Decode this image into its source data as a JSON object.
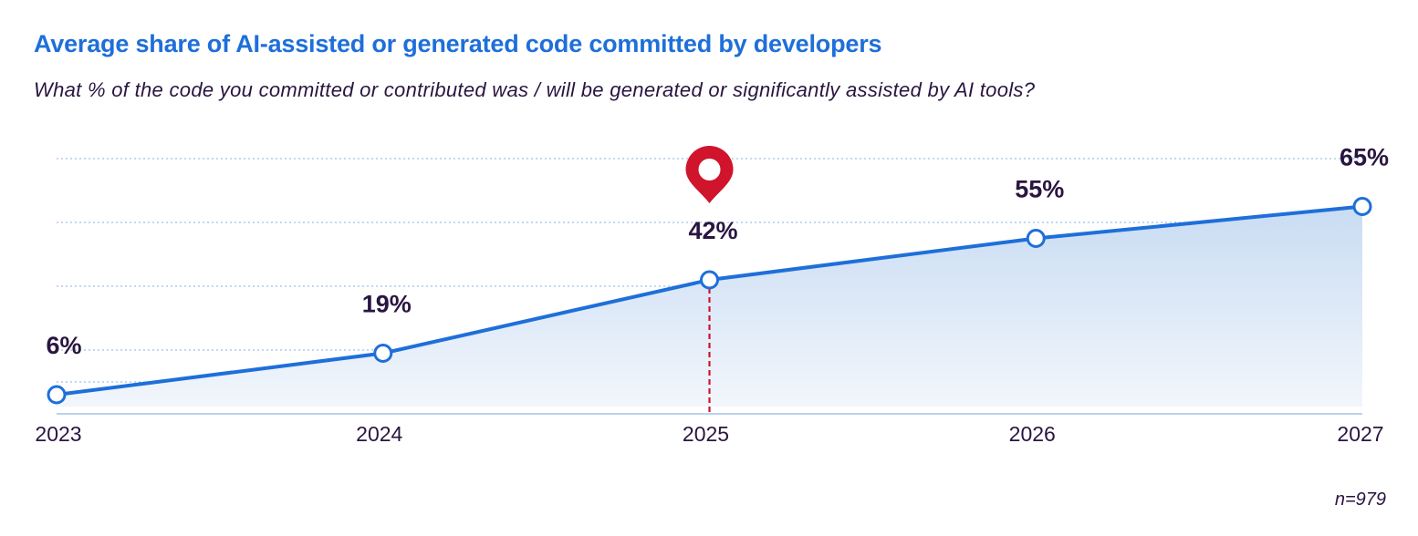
{
  "header": {
    "title": "Average share of AI-assisted or generated code committed by developers",
    "subtitle": "What % of the code you committed or contributed was / will be generated or significantly assisted by AI tools?"
  },
  "footer": {
    "sample_note": "n=979"
  },
  "colors": {
    "line": "#1e6fd9",
    "area_top": "#c9dcf3",
    "area_bottom": "#f2f6fc",
    "marker": "#d0142c",
    "grid": "#9dbfe6",
    "text": "#2a1540"
  },
  "chart_data": {
    "type": "area",
    "title": "Average share of AI-assisted or generated code committed by developers",
    "subtitle": "What % of the code you committed or contributed was / will be generated or significantly assisted by AI tools?",
    "categories": [
      "2023",
      "2024",
      "2025",
      "2026",
      "2027"
    ],
    "values": [
      6,
      19,
      42,
      55,
      65
    ],
    "value_labels": [
      "6%",
      "19%",
      "42%",
      "55%",
      "65%"
    ],
    "unit": "%",
    "ylim": [
      0,
      80
    ],
    "y_gridlines": [
      10,
      20,
      40,
      60,
      80
    ],
    "grid": true,
    "highlight": {
      "category": "2025",
      "icon": "location-pin-icon"
    },
    "xlabel": "",
    "ylabel": ""
  }
}
